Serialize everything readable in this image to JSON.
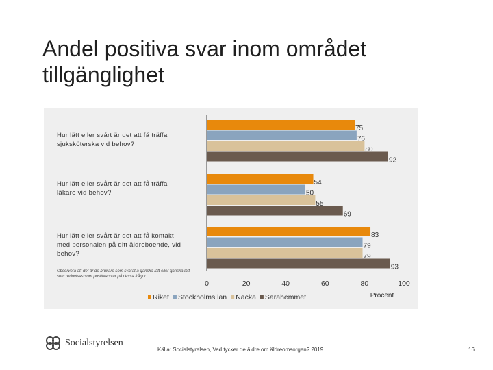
{
  "slide": {
    "title": "Andel positiva svar inom området tillgänglighet",
    "source": "Källa: Socialstyrelsen, Vad tycker de äldre om äldreomsorgen? 2019",
    "page_number": "16",
    "logo_text": "Socialstyrelsen",
    "note": "Observera att det är de brukare som svarat a ganska lätt eller ganska lätt som redovisas som positiva svar på dessa frågor"
  },
  "chart_data": {
    "type": "bar",
    "orientation": "horizontal",
    "categories": [
      "Hur lätt eller svårt är det att få träffa sjuksköterska vid behov?",
      "Hur lätt eller svårt är det att få träffa läkare vid behov?",
      "Hur lätt eller svårt är det att få kontakt med personalen på ditt äldreboende, vid behov?"
    ],
    "series": [
      {
        "name": "Riket",
        "color": "#e8890c",
        "values": [
          75,
          54,
          83
        ]
      },
      {
        "name": "Stockholms län",
        "color": "#8aa4be",
        "values": [
          76,
          50,
          79
        ]
      },
      {
        "name": "Nacka",
        "color": "#d9c29a",
        "values": [
          80,
          55,
          79
        ]
      },
      {
        "name": "Sarahemmet",
        "color": "#6a5a4e",
        "values": [
          92,
          69,
          93
        ]
      }
    ],
    "xlim": [
      0,
      100
    ],
    "xticks": [
      "0",
      "20",
      "40",
      "60",
      "80",
      "100"
    ],
    "xlabel": "Procent",
    "legend_position": "bottom"
  }
}
